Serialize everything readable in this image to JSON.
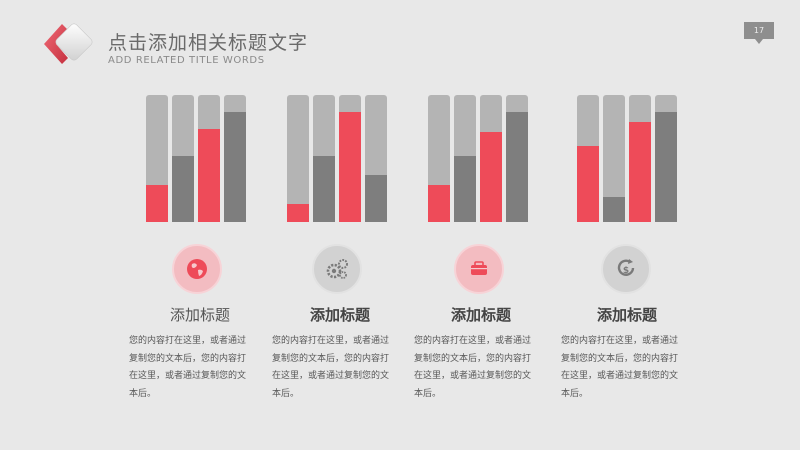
{
  "header": {
    "title": "点击添加相关标题文字",
    "subtitle": "ADD RELATED TITLE WORDS",
    "page_number": "17"
  },
  "colors": {
    "accent": "#ee4b59",
    "dark_bar": "#7e7e7e",
    "track": "#b4b4b4",
    "background": "#e8e8e8"
  },
  "columns": [
    {
      "bars": [
        {
          "level": 0.29,
          "color": "red"
        },
        {
          "level": 0.52,
          "color": "gray"
        },
        {
          "level": 0.73,
          "color": "red"
        },
        {
          "level": 0.87,
          "color": "gray"
        }
      ],
      "icon": "globe-icon",
      "icon_style": "red",
      "heading": "添加标题",
      "body": "您的内容打在这里，或者通过复制您的文本后，您的内容打在这里，或者通过复制您的文本后。"
    },
    {
      "bars": [
        {
          "level": 0.14,
          "color": "red"
        },
        {
          "level": 0.52,
          "color": "gray"
        },
        {
          "level": 0.87,
          "color": "red"
        },
        {
          "level": 0.37,
          "color": "gray"
        }
      ],
      "icon": "gears-icon",
      "icon_style": "gray",
      "heading": "添加标题",
      "body": "您的内容打在这里，或者通过复制您的文本后，您的内容打在这里，或者通过复制您的文本后。"
    },
    {
      "bars": [
        {
          "level": 0.29,
          "color": "red"
        },
        {
          "level": 0.52,
          "color": "gray"
        },
        {
          "level": 0.71,
          "color": "red"
        },
        {
          "level": 0.87,
          "color": "gray"
        }
      ],
      "icon": "wallet-icon",
      "icon_style": "red",
      "heading": "添加标题",
      "body": "您的内容打在这里，或者通过复制您的文本后，您的内容打在这里，或者通过复制您的文本后。"
    },
    {
      "bars": [
        {
          "level": 0.6,
          "color": "red"
        },
        {
          "level": 0.2,
          "color": "gray"
        },
        {
          "level": 0.79,
          "color": "red"
        },
        {
          "level": 0.87,
          "color": "gray"
        }
      ],
      "icon": "refresh-dollar-icon",
      "icon_style": "gray",
      "heading": "添加标题",
      "body": "您的内容打在这里，或者通过复制您的文本后，您的内容打在这里，或者通过复制您的文本后。"
    }
  ]
}
